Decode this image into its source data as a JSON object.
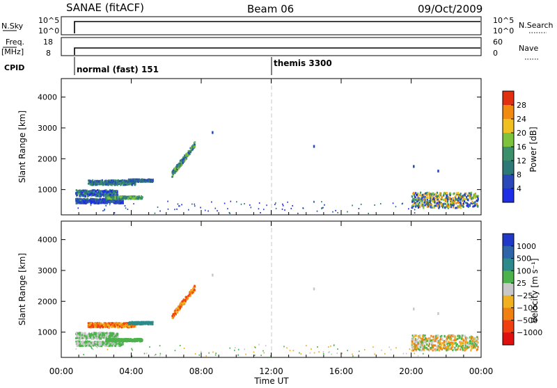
{
  "header": {
    "station": "SANAE (fitACF)",
    "beam": "Beam 06",
    "date": "09/Oct/2009"
  },
  "panels": {
    "nsky_label": "N.Sky",
    "nsky_ticks": [
      "10^5",
      "10^0"
    ],
    "nsearch_label": "N.Search",
    "nsearch_ticks": [
      "10^5",
      "10^0"
    ],
    "freq_label_1": "Freq.",
    "freq_label_2": "[MHz]",
    "freq_ticks": [
      "18",
      "8"
    ],
    "nave_label": "Nave",
    "nave_ticks": [
      "60",
      "0"
    ],
    "cpid_label": "CPID",
    "cpid_1": "normal (fast) 151",
    "cpid_2": "themis 3300"
  },
  "chart_data": [
    {
      "type": "heatmap",
      "name": "power",
      "ylabel": "Slant Range [km]",
      "yticks": [
        "1000",
        "2000",
        "3000",
        "4000"
      ],
      "ylim": [
        180,
        4600
      ],
      "xlim": [
        0,
        24
      ],
      "colorbar_label": "Power [dB]",
      "colorbar_ticks": [
        "4",
        "8",
        "12",
        "16",
        "20",
        "24",
        "28"
      ],
      "colors": [
        "#1e2ee6",
        "#2a48b8",
        "#2e7878",
        "#3b8f6b",
        "#7dc23c",
        "#f0c020",
        "#f08a10",
        "#e03010"
      ]
    },
    {
      "type": "heatmap",
      "name": "velocity",
      "ylabel": "Slant Range [km]",
      "yticks": [
        "1000",
        "2000",
        "3000",
        "4000"
      ],
      "ylim": [
        180,
        4600
      ],
      "xlim": [
        0,
        24
      ],
      "colorbar_label": "Velocity [m s⁻¹]",
      "colorbar_ticks": [
        "1000",
        "500",
        "100",
        "25",
        "−25",
        "−100",
        "−500",
        "−1000"
      ],
      "colors": [
        "#2038c8",
        "#2e64a8",
        "#2e8a8a",
        "#4cb24c",
        "#c8c8c8",
        "#f0b020",
        "#f08010",
        "#f04010",
        "#e01010"
      ]
    }
  ],
  "xaxis": {
    "ticks": [
      "00:00",
      "04:00",
      "08:00",
      "12:00",
      "16:00",
      "20:00",
      "00:00"
    ],
    "label": "Time UT"
  }
}
